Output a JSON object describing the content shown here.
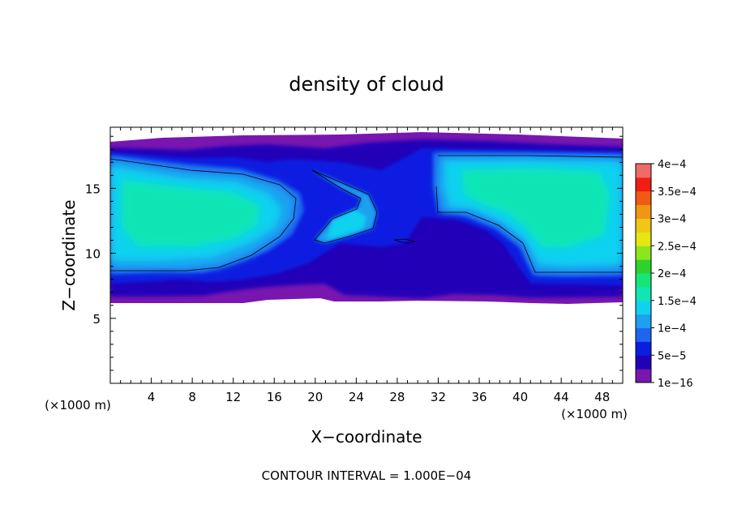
{
  "chart_data": {
    "type": "heatmap",
    "title": "density of cloud",
    "xlabel": "X−coordinate",
    "ylabel": "Z−coordinate",
    "x_unit_left": "(×1000 m)",
    "x_unit_right": "(×1000 m)",
    "xlim": [
      0,
      50
    ],
    "ylim": [
      0,
      19.7
    ],
    "x_ticks": [
      4,
      8,
      12,
      16,
      20,
      24,
      28,
      32,
      36,
      40,
      44,
      48
    ],
    "y_ticks": [
      5,
      10,
      15
    ],
    "footer": "CONTOUR INTERVAL = 1.000E−04",
    "colorbar": {
      "labels": [
        "1e−16",
        "5e−5",
        "1e−4",
        "1.5e−4",
        "2e−4",
        "2.5e−4",
        "3e−4",
        "3.5e−4",
        "4e−4"
      ],
      "colors": [
        "#7a16b0",
        "#2200b8",
        "#0a1ee0",
        "#1e64f0",
        "#1ea0f0",
        "#10d2f0",
        "#10e6b4",
        "#14e678",
        "#2ed22e",
        "#8ce61e",
        "#e6e614",
        "#f0c814",
        "#f09614",
        "#f05a14",
        "#f01e14",
        "#f06a6a"
      ]
    },
    "contour_level": "1e−4",
    "grid": false
  }
}
